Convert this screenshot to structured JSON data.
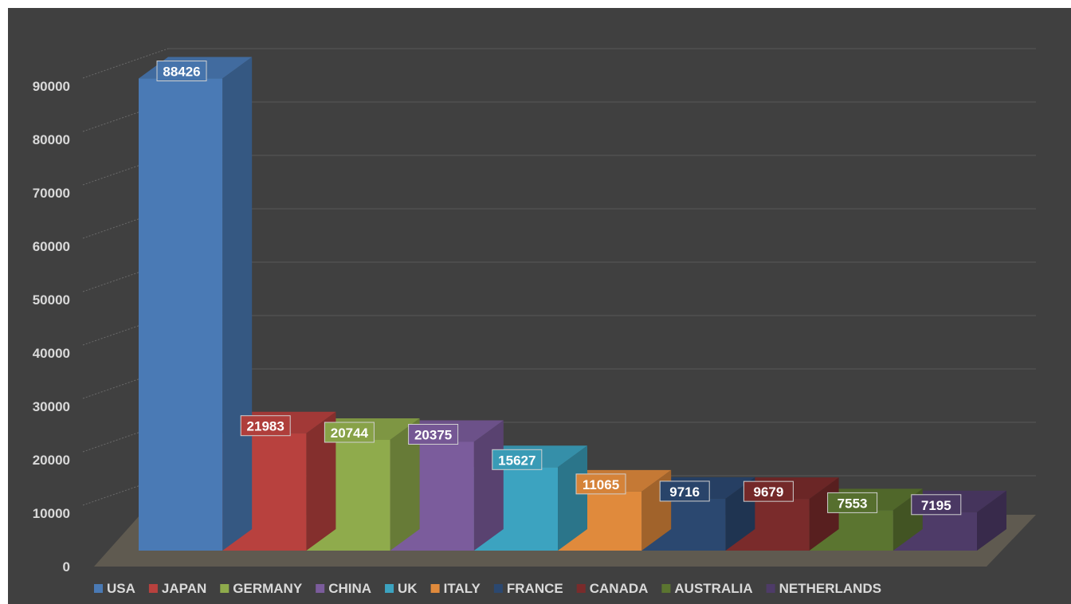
{
  "chart_data": {
    "type": "bar",
    "categories": [
      "USA",
      "JAPAN",
      "GERMANY",
      "CHINA",
      "UK",
      "ITALY",
      "FRANCE",
      "CANADA",
      "AUSTRALIA",
      "NETHERLANDS"
    ],
    "values": [
      88426,
      21983,
      20744,
      20375,
      15627,
      11065,
      9716,
      9679,
      7553,
      7195
    ],
    "colors": [
      "#4a7ab5",
      "#b8413e",
      "#8fab4c",
      "#7b5c9c",
      "#3ca3c0",
      "#e08a3c",
      "#2b4870",
      "#7a2b2b",
      "#5b7530",
      "#4e3b68"
    ],
    "ylim": [
      0,
      90000
    ],
    "yticks": [
      "0",
      "10000",
      "20000",
      "30000",
      "40000",
      "50000",
      "60000",
      "70000",
      "80000",
      "90000"
    ],
    "title": "",
    "xlabel": "",
    "ylabel": "",
    "grid": true,
    "three_d": true,
    "data_labels": true,
    "legend": "bottom"
  }
}
